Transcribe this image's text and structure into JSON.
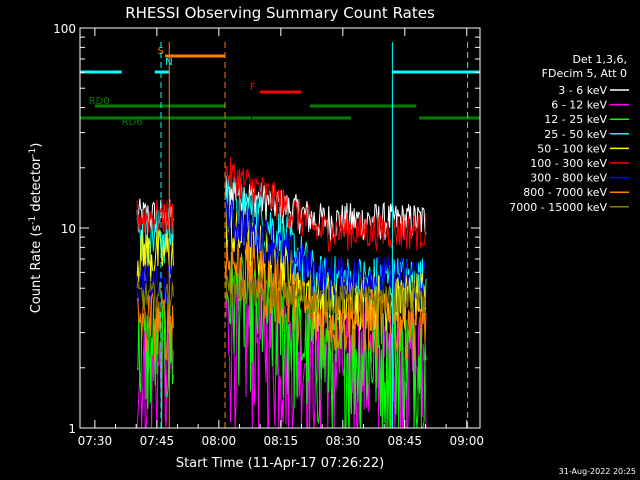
{
  "chart_data": {
    "type": "line",
    "title": "RHESSI Observing Summary Count Rates",
    "xlabel": "Start Time (11-Apr-17 07:26:22)",
    "ylabel_main": "Count Rate (s",
    "ylabel_sup1": "-1",
    "ylabel_mid": " detector",
    "ylabel_sup2": "-1",
    "ylabel_end": ")",
    "xlim_minutes": [
      446.4,
      543.2
    ],
    "ylim": [
      1,
      100
    ],
    "log_y": true,
    "x_ticks": [
      {
        "label": "07:30",
        "minute": 450
      },
      {
        "label": "07:45",
        "minute": 465
      },
      {
        "label": "08:00",
        "minute": 480
      },
      {
        "label": "08:15",
        "minute": 495
      },
      {
        "label": "08:30",
        "minute": 510
      },
      {
        "label": "08:45",
        "minute": 525
      },
      {
        "label": "09:00",
        "minute": 540
      }
    ],
    "y_tick_labels": [
      {
        "label": "1",
        "value": 1
      },
      {
        "label": "10",
        "value": 10
      },
      {
        "label": "100",
        "value": 100
      }
    ],
    "legend_header": [
      "Det 1,3,6,",
      "FDecim 5, Att 0"
    ],
    "series": [
      {
        "name": "3 - 6 keV",
        "color": "#ffffff",
        "seg1": 11.5,
        "seg2_start": 16,
        "seg2_end": 11,
        "noise": 0.1
      },
      {
        "name": "6 - 12 keV",
        "color": "#ff00ff",
        "seg1": 1.9,
        "seg2_start": 3.6,
        "seg2_end": 2.2,
        "noise": 0.35
      },
      {
        "name": "12 - 25 keV",
        "color": "#00ff00",
        "seg1": 2.6,
        "seg2_start": 5.0,
        "seg2_end": 2.4,
        "noise": 0.3
      },
      {
        "name": "25 - 50 keV",
        "color": "#00ffff",
        "seg1": 9.5,
        "seg2_start": 15,
        "seg2_end": 5.5,
        "noise": 0.15
      },
      {
        "name": "50 - 100 keV",
        "color": "#ffff00",
        "seg1": 7.5,
        "seg2_start": 10,
        "seg2_end": 4.5,
        "noise": 0.15
      },
      {
        "name": "100 - 300 keV",
        "color": "#ff0000",
        "seg1": 11.5,
        "seg2_start": 19,
        "seg2_end": 9.8,
        "noise": 0.1
      },
      {
        "name": "300 - 800 keV",
        "color": "#0000ff",
        "seg1": 5.2,
        "seg2_start": 11.5,
        "seg2_end": 5.8,
        "noise": 0.12
      },
      {
        "name": "800 - 7000 keV",
        "color": "#ff8000",
        "seg1": 3.5,
        "seg2_start": 7.0,
        "seg2_end": 3.6,
        "noise": 0.18
      },
      {
        "name": "7000 - 15000 keV",
        "color": "#808000",
        "seg1": 4.6,
        "seg2_start": 5.0,
        "seg2_end": 4.4,
        "noise": 0.08
      }
    ],
    "data_segments": [
      {
        "start_minute": 460.2,
        "end_minute": 469.2
      },
      {
        "start_minute": 481.5,
        "end_minute": 530.2
      }
    ],
    "flag_bars": [
      {
        "label": "",
        "label_minute": 0,
        "color": "#00ffff",
        "y_frac": 0.11,
        "ranges": [
          [
            446.4,
            456.5
          ],
          [
            464.5,
            468.0
          ],
          [
            522.0,
            543.2
          ]
        ]
      },
      {
        "label": "RD0",
        "label_minute": 448.5,
        "color": "#008000",
        "y_frac": 0.195,
        "ranges": [
          [
            450.0,
            481.5
          ],
          [
            502.0,
            527.8
          ]
        ]
      },
      {
        "label": "RD6",
        "label_minute": 456.5,
        "color": "#008000",
        "y_frac": 0.225,
        "ranges": [
          [
            446.4,
            481.5
          ],
          [
            481.5,
            487.8
          ],
          [
            488.0,
            512.0
          ],
          [
            528.5,
            543.2
          ]
        ]
      },
      {
        "label": "S",
        "label_minute": 465.2,
        "color": "#ff8000",
        "y_frac": 0.07,
        "ranges": [
          [
            467.0,
            481.5
          ]
        ]
      },
      {
        "label": "N",
        "label_minute": 467.0,
        "color": "#00ffff",
        "y_frac": 0.098,
        "ranges": []
      },
      {
        "label": "F",
        "label_minute": 487.5,
        "color": "#ff0000",
        "y_frac": 0.16,
        "ranges": [
          [
            490.0,
            500.0
          ]
        ]
      }
    ],
    "vlines": [
      {
        "minute": 446.4,
        "color": "#00ffff",
        "dashed": false
      },
      {
        "minute": 466.0,
        "color": "#00ffff",
        "dashed": true
      },
      {
        "minute": 468.0,
        "color": "#ff8000",
        "dashed": false
      },
      {
        "minute": 481.5,
        "color": "#ff8000",
        "dashed": true
      },
      {
        "minute": 522.0,
        "color": "#00ffff",
        "dashed": false
      },
      {
        "minute": 540.2,
        "color": "#00ffff",
        "dashed": true
      }
    ]
  },
  "footer": {
    "date": "31-Aug-2022 20:25"
  }
}
